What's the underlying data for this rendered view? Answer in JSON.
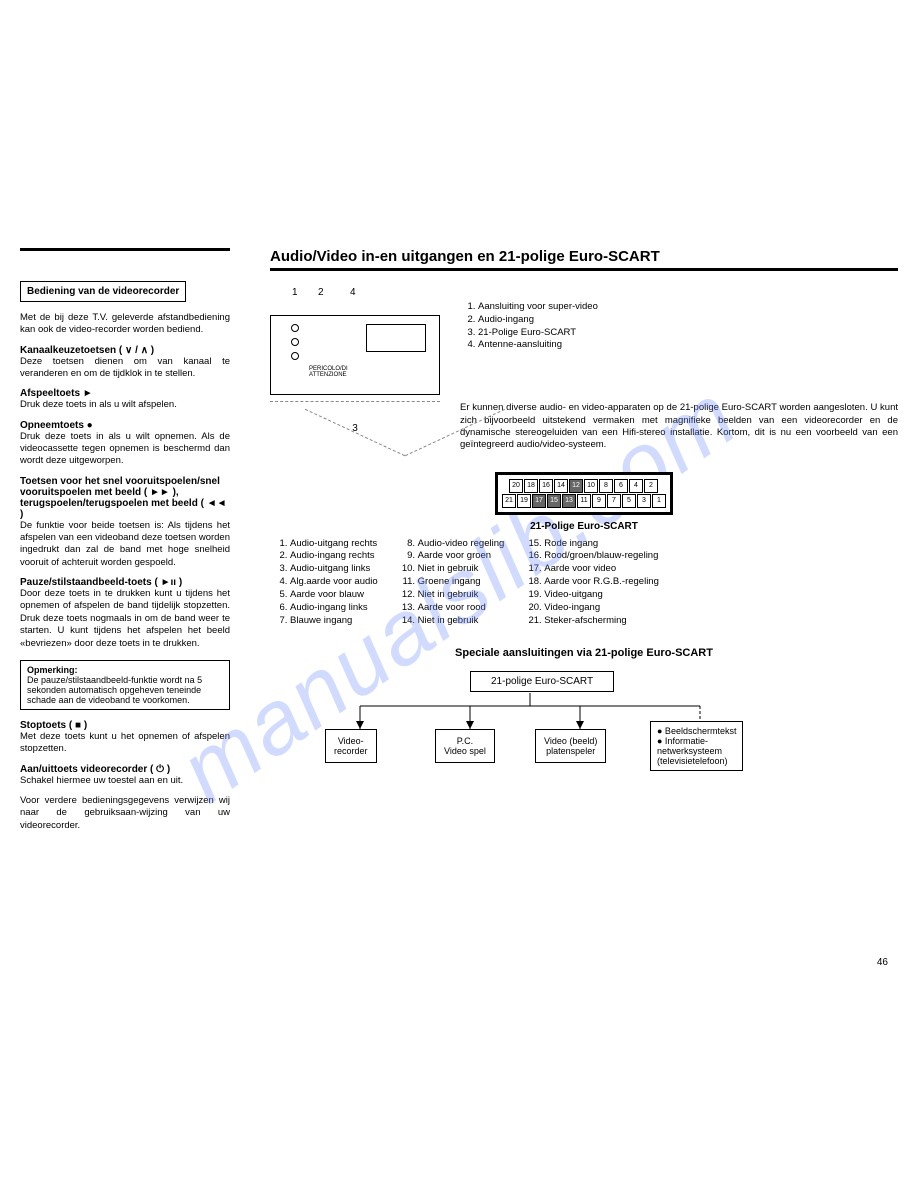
{
  "watermark": "manualslib.com",
  "left": {
    "box_title": "Bediening van de videorecorder",
    "intro": "Met de bij deze T.V. geleverde afstandbediening kan ook de video-recorder worden bediend.",
    "sections": [
      {
        "h": "Kanaalkeuzetoetsen ( ∨ / ∧ )",
        "p": "Deze toetsen dienen om van kanaal te veranderen en om de tijdklok in te stellen."
      },
      {
        "h": "Afspeeltoets  ►",
        "p": "Druk deze toets in als u wilt afspelen."
      },
      {
        "h": "Opneemtoets  ●",
        "p": "Druk deze toets in als u wilt opnemen. Als de videocassette tegen opnemen is beschermd dan wordt deze uitgeworpen."
      },
      {
        "h": "Toetsen voor het snel vooruitspoelen/snel vooruitspoelen met beeld ( ►► ), terugspoelen/terugspoelen met beeld ( ◄◄ )",
        "p": "De funktie voor beide toetsen is: Als tijdens het afspelen van een videoband deze toetsen worden ingedrukt dan zal de band met hoge snelheid vooruit of achteruit worden gespoeld."
      },
      {
        "h": "Pauze/stilstaandbeeld-toets ( ►ıı )",
        "p": "Door deze toets in te drukken kunt u tijdens het opnemen of afspelen de band tijdelijk stopzetten. Druk deze toets nogmaals in om de band weer te starten. U kunt tijdens het afspelen het beeld «bevriezen» door deze toets in te drukken."
      }
    ],
    "note_h": "Opmerking:",
    "note_p": "De pauze/stilstaandbeeld-funktie wordt na 5 sekonden automatisch opgeheven teneinde schade aan de videoband te voorkomen.",
    "sections2": [
      {
        "h": "Stoptoets ( ■ )",
        "p": "Met deze toets kunt u het opnemen of afspelen stopzetten."
      },
      {
        "h": "Aan/uittoets videorecorder ( ⏻ )",
        "p": "Schakel hiermee uw toestel aan en uit."
      }
    ],
    "final": "Voor verdere bedieningsgegevens verwijzen wij naar de gebruiksaan-wijzing van uw videorecorder."
  },
  "right": {
    "title": "Audio/Video in-en uitgangen en 21-polige Euro-SCART",
    "device_labels": [
      "1",
      "2",
      "4",
      "3"
    ],
    "top_legend": [
      "Aansluiting voor super-video",
      "Audio-ingang",
      "21-Polige Euro-SCART",
      "Antenne-aansluiting"
    ],
    "para": "Er kunnen diverse audio- en video-apparaten op de 21-polige Euro-SCART worden aangesloten. U kunt zich bijvoorbeeld uitstekend vermaken met magnifieke beelden van een videorecorder en de dynamische stereogeluiden van een Hifi-stereo installatie. Kortom, dit is nu een voorbeeld van een geïntegreerd audio/video-systeem.",
    "scart_caption": "21-Polige Euro-SCART",
    "pins_top": [
      "20",
      "18",
      "16",
      "14",
      "12",
      "10",
      "8",
      "6",
      "4",
      "2"
    ],
    "pins_bot": [
      "21",
      "19",
      "17",
      "15",
      "13",
      "11",
      "9",
      "7",
      "5",
      "3",
      "1"
    ],
    "dark_pins": [
      "12",
      "17",
      "15",
      "13"
    ],
    "pin_legend": {
      "col1": [
        "Audio-uitgang rechts",
        "Audio-ingang rechts",
        "Audio-uitgang links",
        "Alg.aarde voor audio",
        "Aarde voor blauw",
        "Audio-ingang links",
        "Blauwe ingang"
      ],
      "col2_start": 8,
      "col2": [
        "Audio-video regeling",
        "Aarde voor groen",
        "Niet in gebruik",
        "Groene ingang",
        "Niet in gebruik",
        "Aarde voor rood",
        "Niet in gebruik"
      ],
      "col3_start": 15,
      "col3": [
        "Rode ingang",
        "Rood/groen/blauw-regeling",
        "Aarde voor video",
        "Aarde voor R.G.B.-regeling",
        "Video-uitgang",
        "Video-ingang",
        "Steker-afscherming"
      ]
    },
    "diagram_title": "Speciale aansluitingen via 21-polige Euro-SCART",
    "flow": {
      "top": "21-polige Euro-SCART",
      "boxes": [
        "Video-\nrecorder",
        "P.C.\nVideo spel",
        "Video (beeld)\nplatenspeler"
      ],
      "list": [
        "●  Beeldschermtekst",
        "●  Informatie-\n    netwerksysteem\n    (televisietelefoon)"
      ]
    },
    "page": "46"
  }
}
